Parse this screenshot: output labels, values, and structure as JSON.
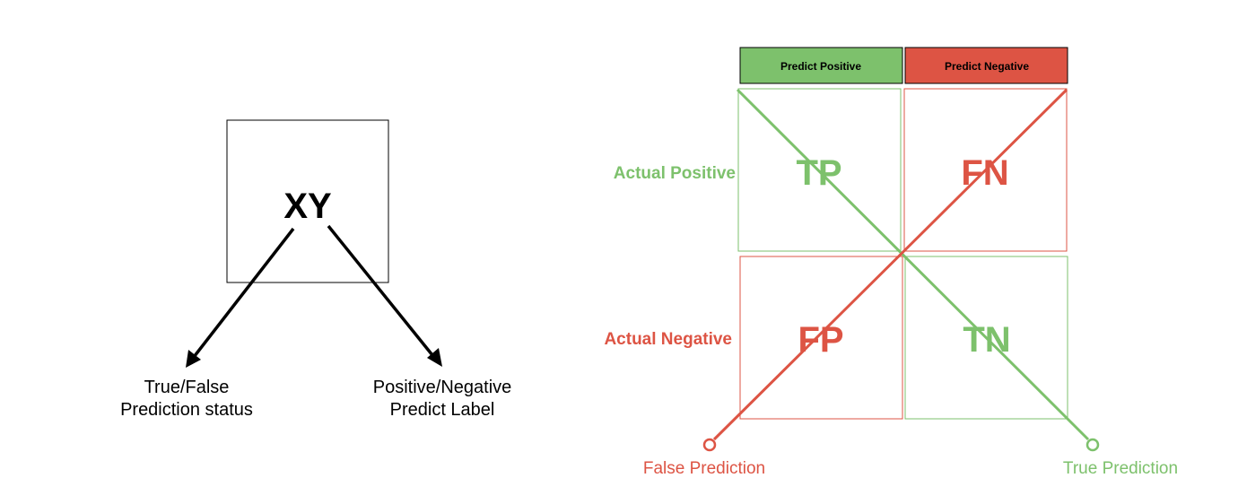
{
  "left_diagram": {
    "box_label": "XY",
    "left_target": {
      "line1": "True/False",
      "line2": "Prediction status"
    },
    "right_target": {
      "line1": "Positive/Negative",
      "line2": "Predict Label"
    }
  },
  "matrix": {
    "col_headers": [
      "Predict Positive",
      "Predict Negative"
    ],
    "row_headers": [
      "Actual Positive",
      "Actual Negative"
    ],
    "cells": [
      "TP",
      "FN",
      "FP",
      "TN"
    ],
    "diagonal_labels": {
      "false": "False Prediction",
      "true": "True Prediction"
    }
  },
  "colors": {
    "green": "#7dc16c",
    "red": "#dd5444",
    "black": "#000000"
  }
}
